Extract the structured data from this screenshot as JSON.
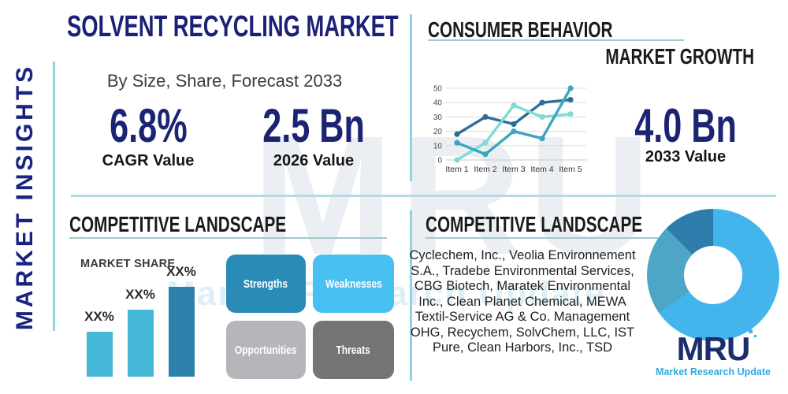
{
  "sidebar": {
    "vertical_label": "MARKET INSIGHTS"
  },
  "header": {
    "title": "SOLVENT RECYCLING MARKET",
    "subtitle": "By Size, Share, Forecast 2033"
  },
  "stats": {
    "cagr": {
      "value": "6.8%",
      "label": "CAGR Value"
    },
    "base_year": {
      "value": "2.5 Bn",
      "label": "2026 Value"
    },
    "forecast_year": {
      "value": "4.0 Bn",
      "label": "2033 Value"
    }
  },
  "sections": {
    "consumer_behavior_title": "CONSUMER BEHAVIOR",
    "market_growth_title": "MARKET GROWTH",
    "competitive_left_title": "COMPETITIVE LANDSCAPE",
    "market_share_label": "MARKET SHARE",
    "competitive_right_title": "COMPETITIVE LANDSCAPE",
    "companies": "Cyclechem, Inc., Veolia Environnement S.A., Tradebe Environmental Services, CBG Biotech, Maratek Environmental Inc., Clean Planet Chemical, MEWA Textil-Service AG & Co. Management OHG, Recychem, SolvChem, LLC, IST Pure, Clean Harbors, Inc., TSD"
  },
  "swot": [
    {
      "label": "Strengths",
      "color": "#2a8cb6"
    },
    {
      "label": "Weaknesses",
      "color": "#49c0f2"
    },
    {
      "label": "Opportunities",
      "color": "#b4b6b9"
    },
    {
      "label": "Threats",
      "color": "#727476"
    }
  ],
  "brand": {
    "logo_text": "MRU",
    "logo_tagline": "Market Research Update",
    "watermark_text": "MRU",
    "watermark_tagline": "Market Research Update",
    "navy": "#1b2d6e",
    "light_blue": "#2fa9e0"
  },
  "colors": {
    "title_navy": "#1c2077",
    "stat_navy": "#1b2473",
    "divider_blue": "#8ed2e3",
    "underline_blue": "#9fc9d3"
  },
  "chart_data": [
    {
      "type": "line",
      "title": "",
      "x": [
        "Item 1",
        "Item 2",
        "Item 3",
        "Item 4",
        "Item 5"
      ],
      "series": [
        {
          "name": "Series 1 (dark blue)",
          "color": "#2d6f94",
          "values": [
            18,
            30,
            25,
            40,
            42
          ]
        },
        {
          "name": "Series 2 (light cyan)",
          "color": "#7edbd5",
          "values": [
            0,
            12,
            38,
            30,
            32
          ]
        },
        {
          "name": "Series 3 (teal)",
          "color": "#3ba6bf",
          "values": [
            12,
            4,
            20,
            15,
            50
          ]
        }
      ],
      "ylim": [
        0,
        50
      ],
      "yticks": [
        0,
        10,
        20,
        30,
        40,
        50
      ],
      "grid": true,
      "legend": "none"
    },
    {
      "type": "bar",
      "title": "MARKET SHARE",
      "categories": [
        "Bar 1",
        "Bar 2",
        "Bar 3"
      ],
      "values": [
        57,
        85,
        114
      ],
      "value_labels": [
        "XX%",
        "XX%",
        "XX%"
      ],
      "colors": [
        "#43b7d5",
        "#43b7d5",
        "#2d80aa"
      ],
      "note": "values are relative bar heights in px; data labels shown as XX% placeholders"
    },
    {
      "type": "pie",
      "title": "",
      "slices": [
        {
          "name": "light-blue segment",
          "value": 65.3,
          "color": "#44b5ec"
        },
        {
          "name": "teal segment",
          "value": 22.2,
          "color": "#4da6c6"
        },
        {
          "name": "dark-blue segment",
          "value": 12.5,
          "color": "#2d7cab"
        }
      ],
      "donut": true,
      "start_angle_deg": 0,
      "direction": "clockwise"
    }
  ]
}
